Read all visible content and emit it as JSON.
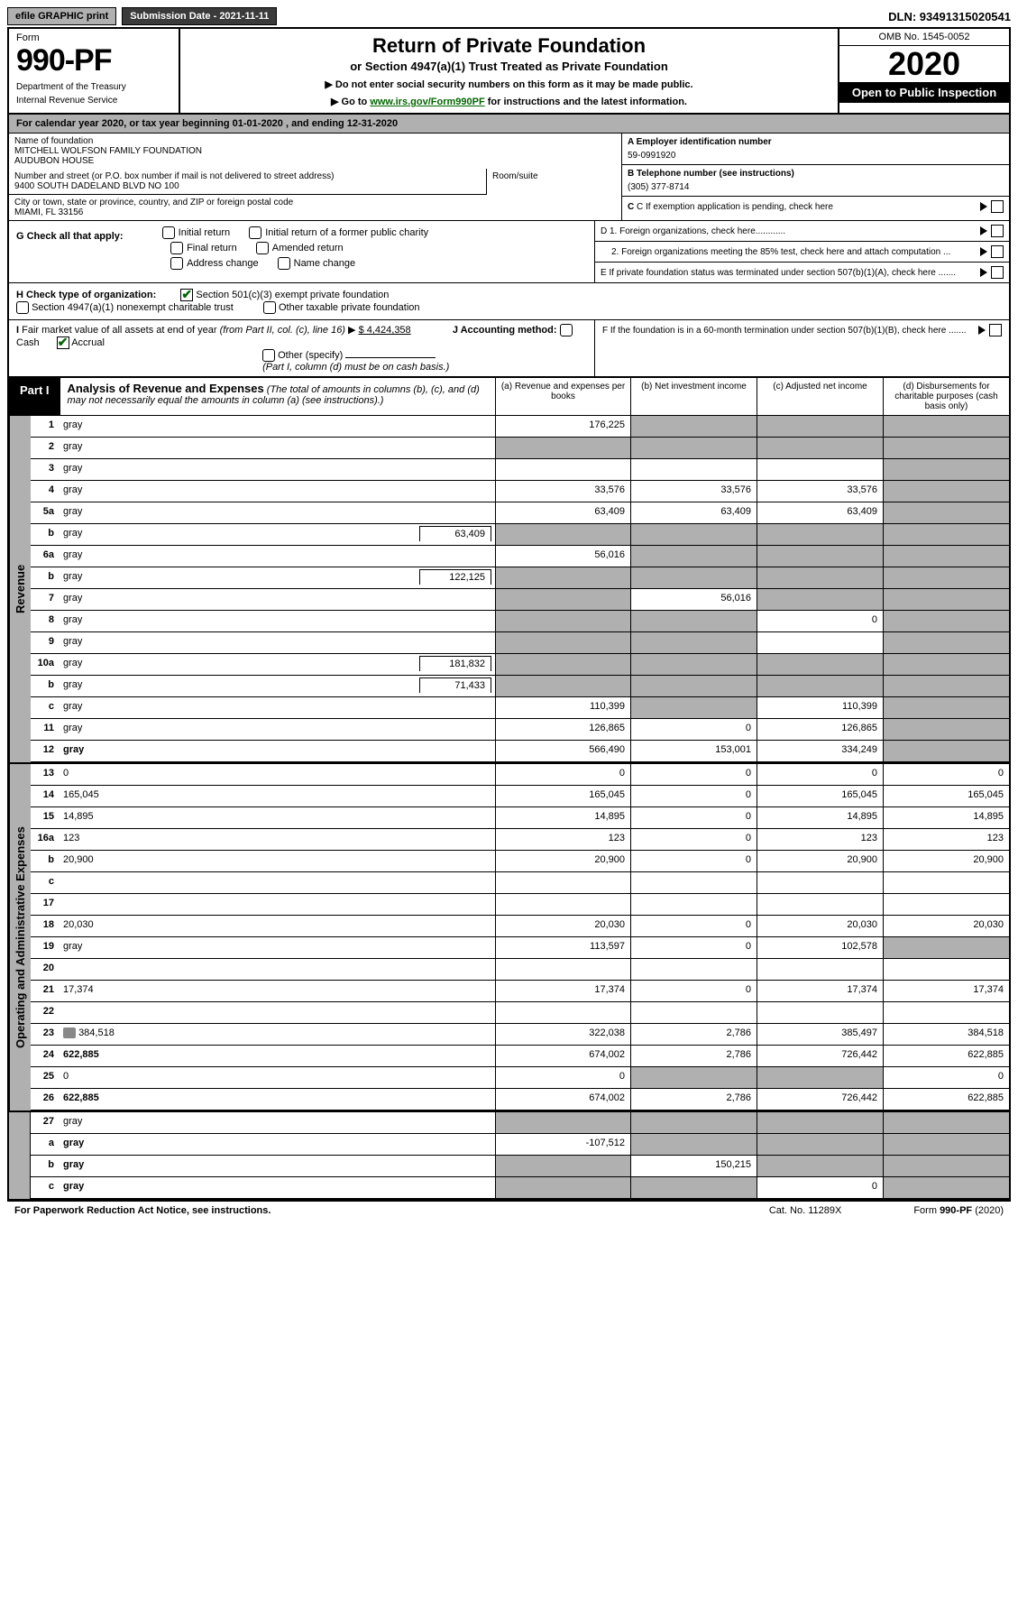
{
  "topbar": {
    "efile": "efile GRAPHIC print",
    "subdate_label": "Submission Date - 2021-11-11",
    "dln": "DLN: 93491315020541"
  },
  "header": {
    "form_word": "Form",
    "form_no": "990-PF",
    "dept": "Department of the Treasury",
    "irs": "Internal Revenue Service",
    "title": "Return of Private Foundation",
    "subtitle": "or Section 4947(a)(1) Trust Treated as Private Foundation",
    "note1": "▶ Do not enter social security numbers on this form as it may be made public.",
    "note2_a": "▶ Go to ",
    "note2_link": "www.irs.gov/Form990PF",
    "note2_b": " for instructions and the latest information.",
    "omb": "OMB No. 1545-0052",
    "year": "2020",
    "open": "Open to Public Inspection"
  },
  "calendar": "For calendar year 2020, or tax year beginning 01-01-2020                          , and ending 12-31-2020",
  "info": {
    "name_label": "Name of foundation",
    "name": "MITCHELL WOLFSON FAMILY FOUNDATION\nAUDUBON HOUSE",
    "addr_label": "Number and street (or P.O. box number if mail is not delivered to street address)",
    "addr": "9400 SOUTH DADELAND BLVD NO 100",
    "room_label": "Room/suite",
    "city_label": "City or town, state or province, country, and ZIP or foreign postal code",
    "city": "MIAMI, FL  33156",
    "a_label": "A Employer identification number",
    "a_val": "59-0991920",
    "b_label": "B Telephone number (see instructions)",
    "b_val": "(305) 377-8714",
    "c_label": "C If exemption application is pending, check here",
    "d1": "D 1. Foreign organizations, check here............",
    "d2": "2. Foreign organizations meeting the 85% test, check here and attach computation ...",
    "e": "E  If private foundation status was terminated under section 507(b)(1)(A), check here .......",
    "f": "F  If the foundation is in a 60-month termination under section 507(b)(1)(B), check here .......",
    "g_label": "G Check all that apply:",
    "g_opts": [
      "Initial return",
      "Initial return of a former public charity",
      "Final return",
      "Amended return",
      "Address change",
      "Name change"
    ],
    "h_label": "H Check type of organization:",
    "h1": "Section 501(c)(3) exempt private foundation",
    "h2": "Section 4947(a)(1) nonexempt charitable trust",
    "h3": "Other taxable private foundation",
    "i_label": "I Fair market value of all assets at end of year (from Part II, col. (c), line 16)",
    "i_val": "$  4,424,358",
    "j_label": "J Accounting method:",
    "j_cash": "Cash",
    "j_accr": "Accrual",
    "j_other": "Other (specify)",
    "j_note": "(Part I, column (d) must be on cash basis.)"
  },
  "part1": {
    "tag": "Part I",
    "title": "Analysis of Revenue and Expenses",
    "title_note": " (The total of amounts in columns (b), (c), and (d) may not necessarily equal the amounts in column (a) (see instructions).)",
    "col_a": "(a)   Revenue and expenses per books",
    "col_b": "(b)   Net investment income",
    "col_c": "(c)   Adjusted net income",
    "col_d": "(d)   Disbursements for charitable purposes (cash basis only)"
  },
  "side_rev": "Revenue",
  "side_exp": "Operating and Administrative Expenses",
  "rows": [
    {
      "n": "1",
      "d": "gray",
      "a": "176,225",
      "b": "gray",
      "c": "gray"
    },
    {
      "n": "2",
      "d": "gray",
      "a": "gray",
      "b": "gray",
      "c": "gray"
    },
    {
      "n": "3",
      "d": "gray",
      "a": "",
      "b": "",
      "c": ""
    },
    {
      "n": "4",
      "d": "gray",
      "a": "33,576",
      "b": "33,576",
      "c": "33,576"
    },
    {
      "n": "5a",
      "d": "gray",
      "a": "63,409",
      "b": "63,409",
      "c": "63,409"
    },
    {
      "n": "b",
      "d": "gray",
      "inset": "63,409",
      "a": "gray",
      "b": "gray",
      "c": "gray"
    },
    {
      "n": "6a",
      "d": "gray",
      "a": "56,016",
      "b": "gray",
      "c": "gray"
    },
    {
      "n": "b",
      "d": "gray",
      "inset": "122,125",
      "uline": true,
      "a": "gray",
      "b": "gray",
      "c": "gray"
    },
    {
      "n": "7",
      "d": "gray",
      "a": "gray",
      "b": "56,016",
      "c": "gray"
    },
    {
      "n": "8",
      "d": "gray",
      "a": "gray",
      "b": "gray",
      "c": "0"
    },
    {
      "n": "9",
      "d": "gray",
      "a": "gray",
      "b": "gray",
      "c": ""
    },
    {
      "n": "10a",
      "d": "gray",
      "inset": "181,832",
      "a": "gray",
      "b": "gray",
      "c": "gray"
    },
    {
      "n": "b",
      "d": "gray",
      "inset": "71,433",
      "a": "gray",
      "b": "gray",
      "c": "gray"
    },
    {
      "n": "c",
      "d": "gray",
      "a": "110,399",
      "b": "gray",
      "c": "110,399"
    },
    {
      "n": "11",
      "d": "gray",
      "a": "126,865",
      "b": "0",
      "c": "126,865"
    },
    {
      "n": "12",
      "d": "gray",
      "bold": true,
      "a": "566,490",
      "b": "153,001",
      "c": "334,249"
    }
  ],
  "rows2": [
    {
      "n": "13",
      "d": "0",
      "a": "0",
      "b": "0",
      "c": "0"
    },
    {
      "n": "14",
      "d": "165,045",
      "a": "165,045",
      "b": "0",
      "c": "165,045"
    },
    {
      "n": "15",
      "d": "14,895",
      "a": "14,895",
      "b": "0",
      "c": "14,895"
    },
    {
      "n": "16a",
      "d": "123",
      "a": "123",
      "b": "0",
      "c": "123"
    },
    {
      "n": "b",
      "d": "20,900",
      "a": "20,900",
      "b": "0",
      "c": "20,900"
    },
    {
      "n": "c",
      "d": "",
      "a": "",
      "b": "",
      "c": ""
    },
    {
      "n": "17",
      "d": "",
      "a": "",
      "b": "",
      "c": ""
    },
    {
      "n": "18",
      "d": "20,030",
      "a": "20,030",
      "b": "0",
      "c": "20,030"
    },
    {
      "n": "19",
      "d": "gray",
      "a": "113,597",
      "b": "0",
      "c": "102,578"
    },
    {
      "n": "20",
      "d": "",
      "a": "",
      "b": "",
      "c": ""
    },
    {
      "n": "21",
      "d": "17,374",
      "a": "17,374",
      "b": "0",
      "c": "17,374"
    },
    {
      "n": "22",
      "d": "",
      "a": "",
      "b": "",
      "c": ""
    },
    {
      "n": "23",
      "d": "384,518",
      "icon": true,
      "a": "322,038",
      "b": "2,786",
      "c": "385,497"
    },
    {
      "n": "24",
      "d": "622,885",
      "bold": true,
      "a": "674,002",
      "b": "2,786",
      "c": "726,442"
    },
    {
      "n": "25",
      "d": "0",
      "a": "0",
      "b": "gray",
      "c": "gray"
    },
    {
      "n": "26",
      "d": "622,885",
      "bold": true,
      "a": "674,002",
      "b": "2,786",
      "c": "726,442"
    }
  ],
  "rows3": [
    {
      "n": "27",
      "d": "gray",
      "a": "gray",
      "b": "gray",
      "c": "gray"
    },
    {
      "n": "a",
      "d": "gray",
      "bold": true,
      "a": "-107,512",
      "b": "gray",
      "c": "gray"
    },
    {
      "n": "b",
      "d": "gray",
      "bold": true,
      "a": "gray",
      "b": "150,215",
      "c": "gray"
    },
    {
      "n": "c",
      "d": "gray",
      "bold": true,
      "a": "gray",
      "b": "gray",
      "c": "0"
    }
  ],
  "footer": {
    "left": "For Paperwork Reduction Act Notice, see instructions.",
    "mid": "Cat. No. 11289X",
    "right": "Form 990-PF (2020)"
  }
}
